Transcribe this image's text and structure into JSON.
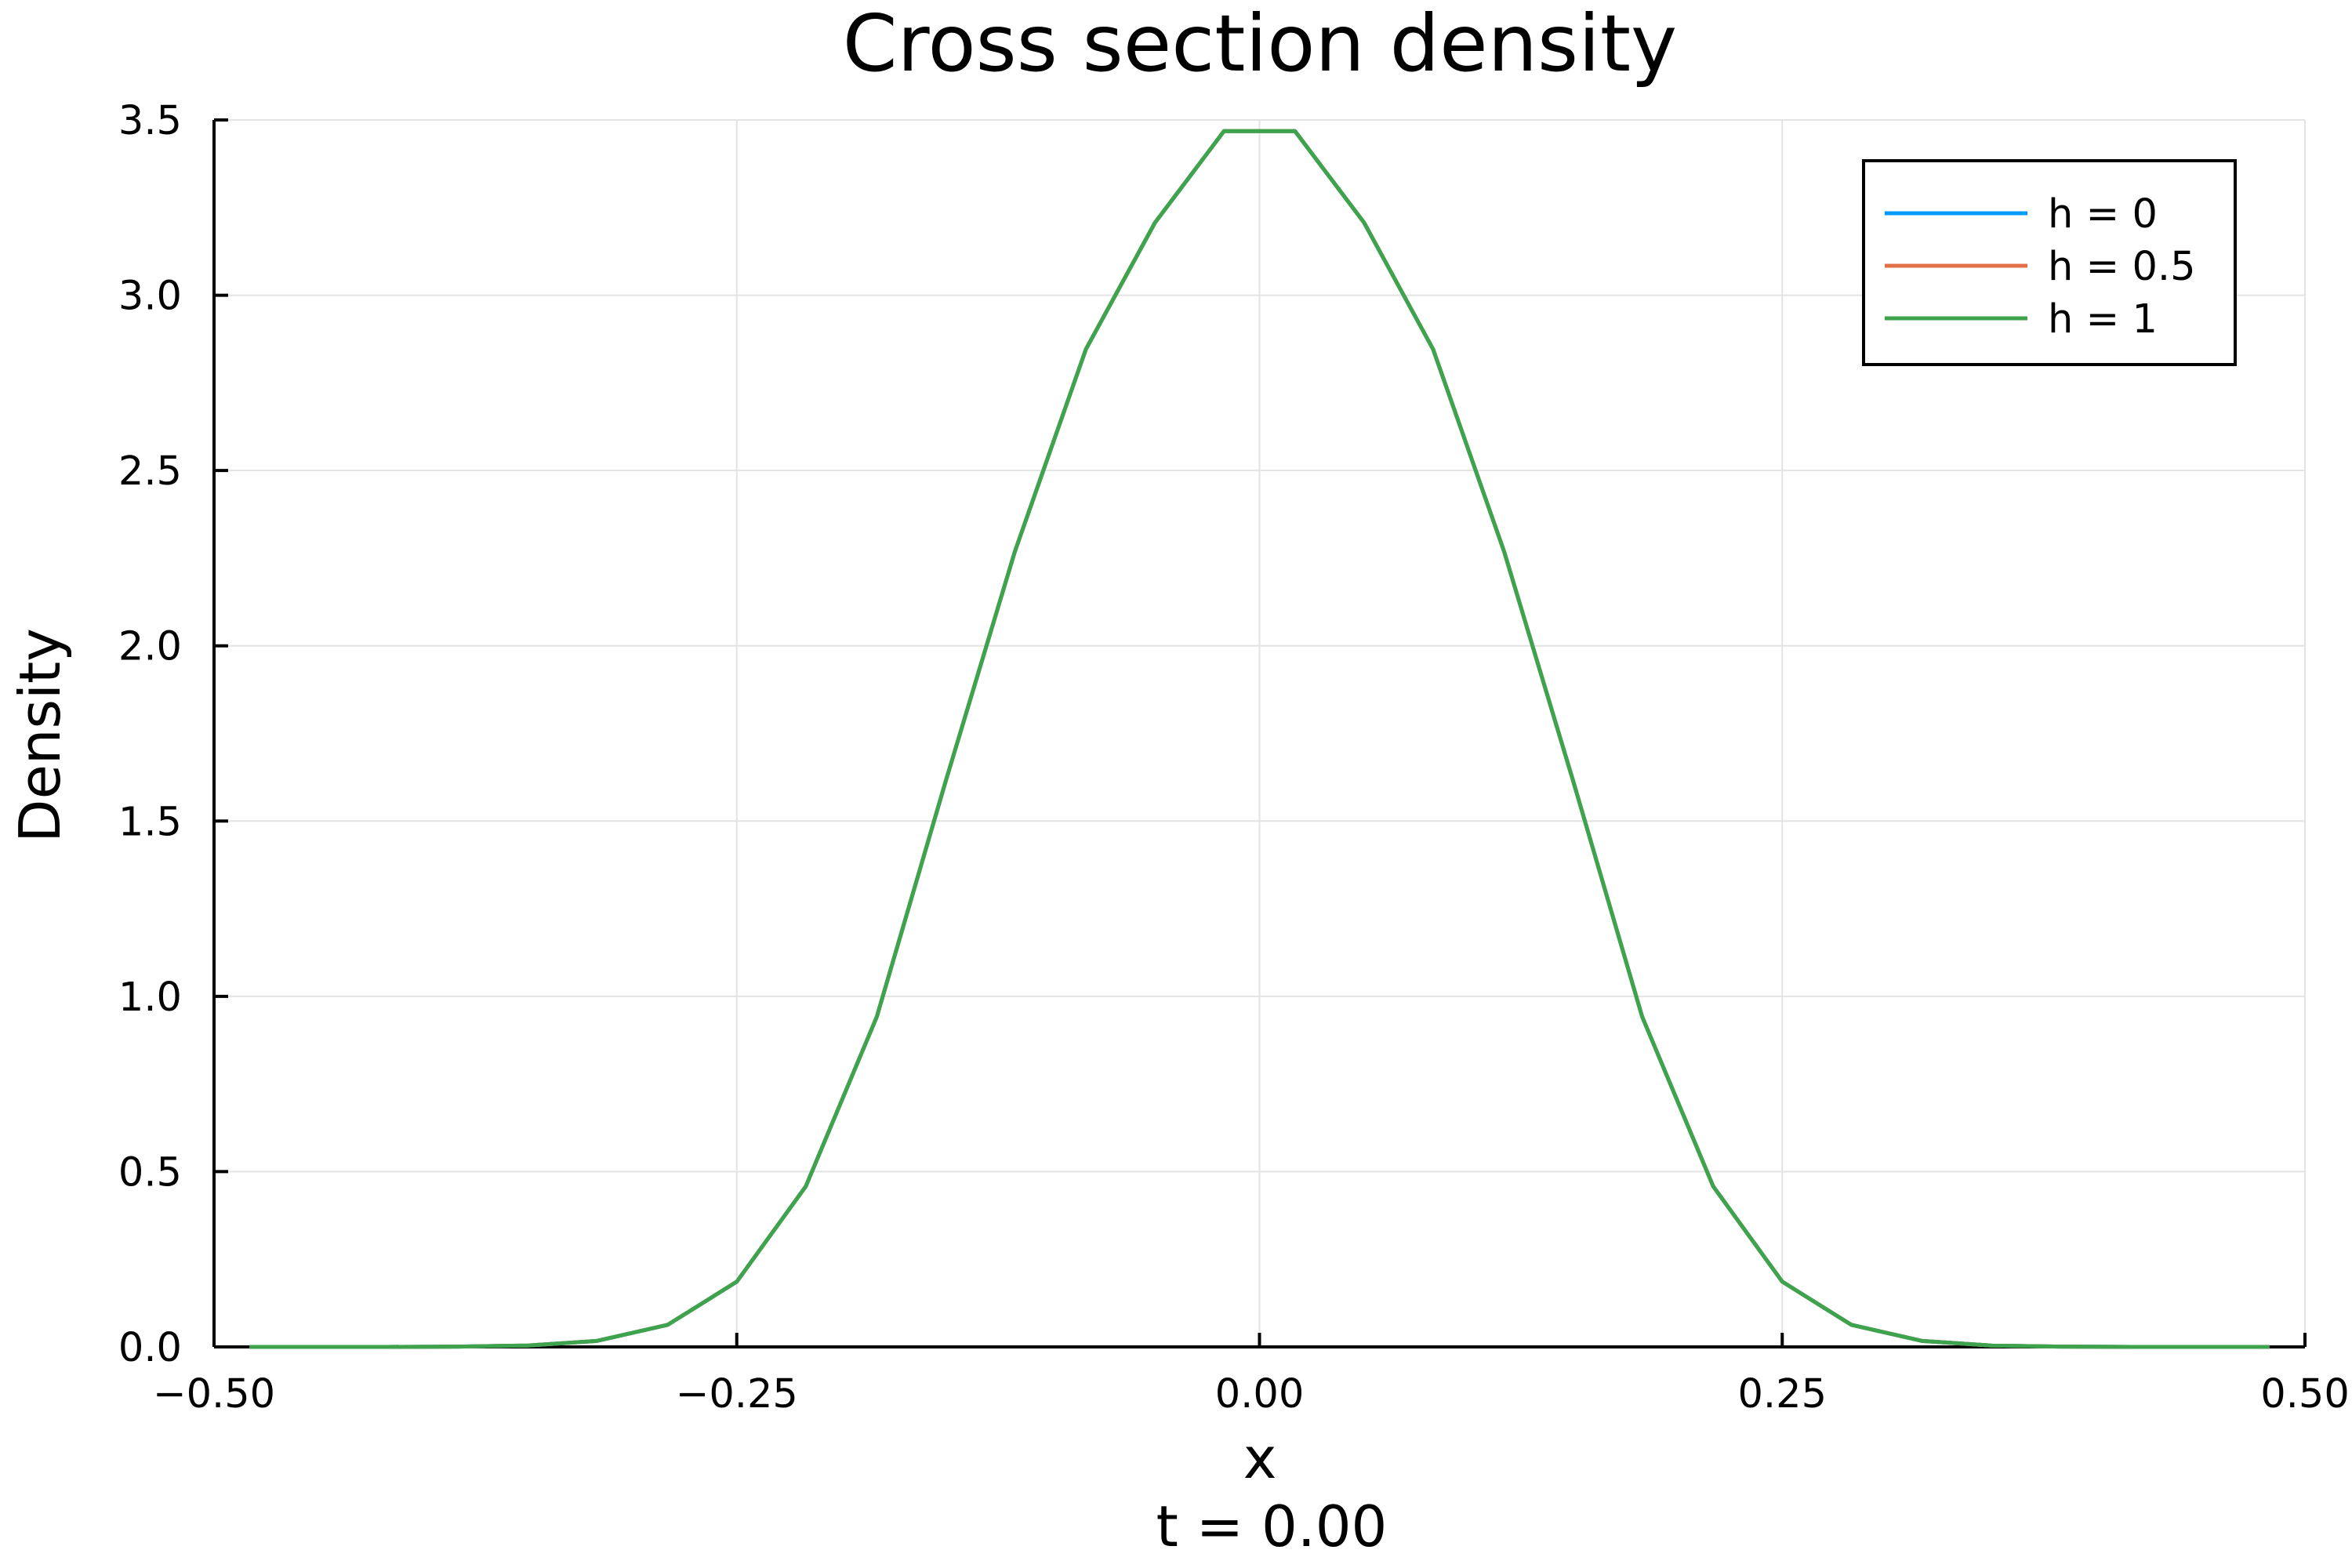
{
  "chart_data": {
    "type": "line",
    "title": "Cross section density",
    "xlabel": "x",
    "subtitle": "t = 0.00",
    "ylabel": "Density",
    "xlim": [
      -0.5,
      0.5
    ],
    "ylim": [
      0,
      3.5
    ],
    "xticks": [
      -0.5,
      -0.25,
      0,
      0.25,
      0.5
    ],
    "xtick_labels": [
      "−0.50",
      "−0.25",
      "0.00",
      "0.25",
      "0.50"
    ],
    "yticks": [
      0,
      0.5,
      1,
      1.5,
      2,
      2.5,
      3,
      3.5
    ],
    "ytick_labels": [
      "0.0",
      "0.5",
      "1.0",
      "1.5",
      "2.0",
      "2.5",
      "3.0",
      "3.5"
    ],
    "grid": true,
    "legend_position": "top-right",
    "x": [
      -0.483,
      -0.45,
      -0.417,
      -0.383,
      -0.35,
      -0.317,
      -0.283,
      -0.25,
      -0.217,
      -0.183,
      -0.15,
      -0.117,
      -0.083,
      -0.05,
      -0.017,
      0.017,
      0.05,
      0.083,
      0.117,
      0.15,
      0.183,
      0.217,
      0.25,
      0.283,
      0.317,
      0.35,
      0.383,
      0.417,
      0.45,
      0.483
    ],
    "series": [
      {
        "name": "h = 0",
        "color": "#009af9",
        "values": [
          0.0,
          0.0,
          0.0,
          0.001,
          0.004,
          0.017,
          0.063,
          0.186,
          0.458,
          0.942,
          1.615,
          2.269,
          2.846,
          3.207,
          3.468,
          3.468,
          3.207,
          2.846,
          2.269,
          1.615,
          0.942,
          0.458,
          0.186,
          0.063,
          0.017,
          0.004,
          0.001,
          0.0,
          0.0,
          0.0
        ]
      },
      {
        "name": "h = 0.5",
        "color": "#e26f46",
        "values": [
          0.0,
          0.0,
          0.0,
          0.001,
          0.004,
          0.017,
          0.063,
          0.186,
          0.458,
          0.942,
          1.615,
          2.269,
          2.846,
          3.207,
          3.468,
          3.468,
          3.207,
          2.846,
          2.269,
          1.615,
          0.942,
          0.458,
          0.186,
          0.063,
          0.017,
          0.004,
          0.001,
          0.0,
          0.0,
          0.0
        ]
      },
      {
        "name": "h = 1",
        "color": "#3da44d",
        "values": [
          0.0,
          0.0,
          0.0,
          0.001,
          0.004,
          0.017,
          0.063,
          0.186,
          0.458,
          0.942,
          1.615,
          2.269,
          2.846,
          3.207,
          3.468,
          3.468,
          3.207,
          2.846,
          2.269,
          1.615,
          0.942,
          0.458,
          0.186,
          0.063,
          0.017,
          0.004,
          0.001,
          0.0,
          0.0,
          0.0
        ]
      }
    ]
  }
}
